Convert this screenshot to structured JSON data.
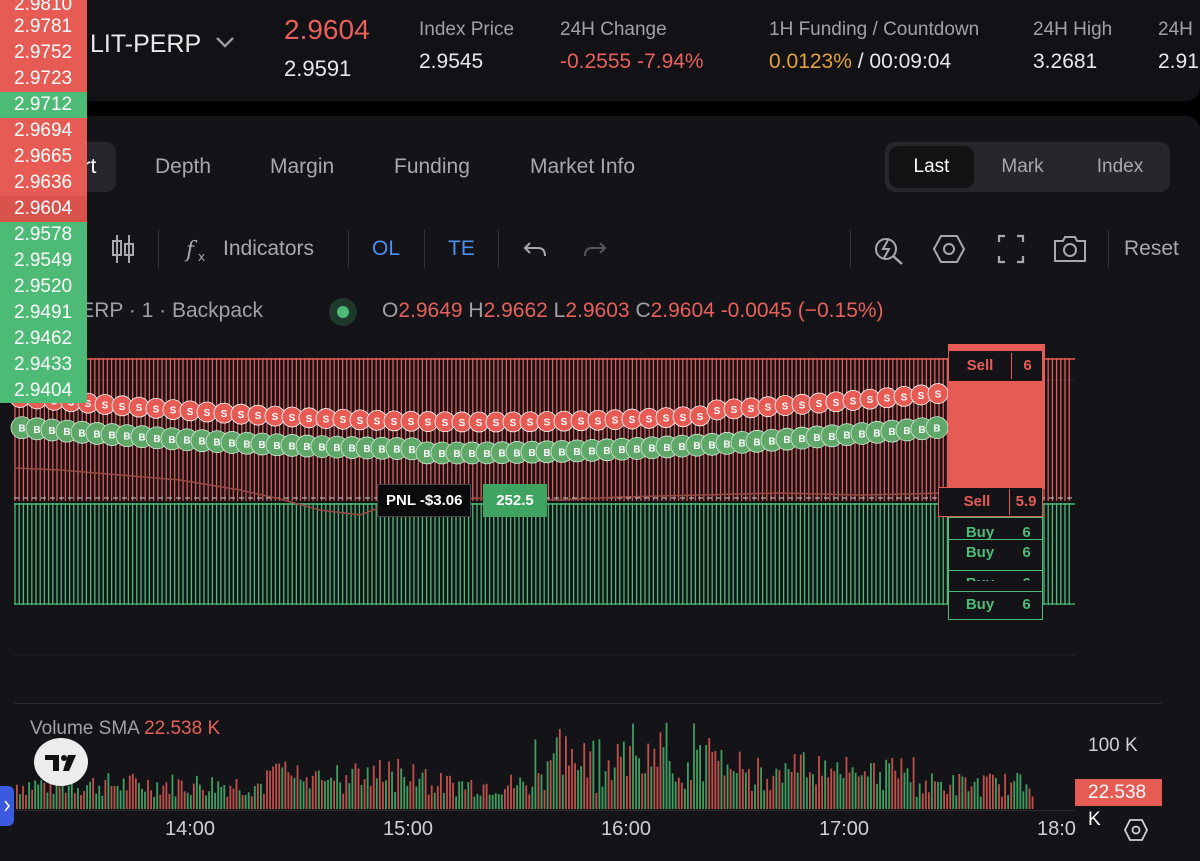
{
  "header": {
    "symbol": "LIT-PERP",
    "last_price": "2.9604",
    "mark_price": "2.9591",
    "stats": [
      {
        "label": "Index Price",
        "value": "2.9545",
        "tone": "neutral"
      },
      {
        "label": "24H Change",
        "value": "-0.2555 -7.94%",
        "tone": "red"
      },
      {
        "label": "1H Funding / Countdown",
        "value_a": "0.0123%",
        "value_b": " / 00:09:04",
        "tone": "orange"
      },
      {
        "label": "24H High",
        "value": "3.2681",
        "tone": "neutral"
      },
      {
        "label": "24H",
        "value": "2.91",
        "tone": "neutral"
      }
    ]
  },
  "tabs": [
    "Chart",
    "Depth",
    "Margin",
    "Funding",
    "Market Info"
  ],
  "active_tab": "Chart",
  "price_source": {
    "options": [
      "Last",
      "Mark",
      "Index"
    ],
    "active": "Last"
  },
  "toolbar": {
    "interval": "1m",
    "indicators": "Indicators",
    "ol": "OL",
    "te": "TE",
    "reset": "Reset"
  },
  "legend": {
    "title": "LIT-PERP · 1 · Backpack",
    "o_label": "O",
    "o_value": "2.9649",
    "h_label": "H",
    "h_value": "2.9662",
    "l_label": "L",
    "l_value": "2.9603",
    "c_label": "C",
    "c_value": "2.9604",
    "change": "-0.0045 (−0.15%)"
  },
  "price_axis": [
    {
      "value": "2.9810",
      "tone": "r"
    },
    {
      "value": "2.9781",
      "tone": "r"
    },
    {
      "value": "2.9752",
      "tone": "r"
    },
    {
      "value": "2.9723",
      "tone": "r"
    },
    {
      "value": "2.9712",
      "tone": "g"
    },
    {
      "value": "2.9694",
      "tone": "r"
    },
    {
      "value": "2.9665",
      "tone": "r"
    },
    {
      "value": "2.9636",
      "tone": "r"
    },
    {
      "value": "2.9604",
      "tone": "cur"
    },
    {
      "value": "2.9578",
      "tone": "g"
    },
    {
      "value": "2.9549",
      "tone": "g"
    },
    {
      "value": "2.9520",
      "tone": "g"
    },
    {
      "value": "2.9491",
      "tone": "g"
    },
    {
      "value": "2.9462",
      "tone": "g"
    },
    {
      "value": "2.9433",
      "tone": "g"
    },
    {
      "value": "2.9404",
      "tone": "g"
    }
  ],
  "orders": {
    "sell_top": {
      "side": "Sell",
      "qty": "6"
    },
    "sell_cur": {
      "side": "Sell",
      "qty": "5.9"
    },
    "buys": [
      {
        "side": "Buy",
        "qty": "6"
      },
      {
        "side": "Buy",
        "qty": "6"
      },
      {
        "side": "Buy",
        "qty": "6"
      },
      {
        "side": "Buy",
        "qty": "6"
      }
    ]
  },
  "position": {
    "pnl": "PNL -$3.06",
    "qty": "252.5"
  },
  "marker_letters": {
    "sell": "S",
    "buy": "B"
  },
  "volume": {
    "label": "Volume SMA",
    "value": "22.538 K",
    "axis_label": "100 K",
    "badge": "22.538 K"
  },
  "time_axis": [
    "14:00",
    "15:00",
    "16:00",
    "17:00",
    "18:0"
  ],
  "colors": {
    "red": "#e65c55",
    "green": "#4dbb76",
    "orange": "#e2a23a",
    "blue": "#4d8ff0",
    "bg": "#141418"
  }
}
